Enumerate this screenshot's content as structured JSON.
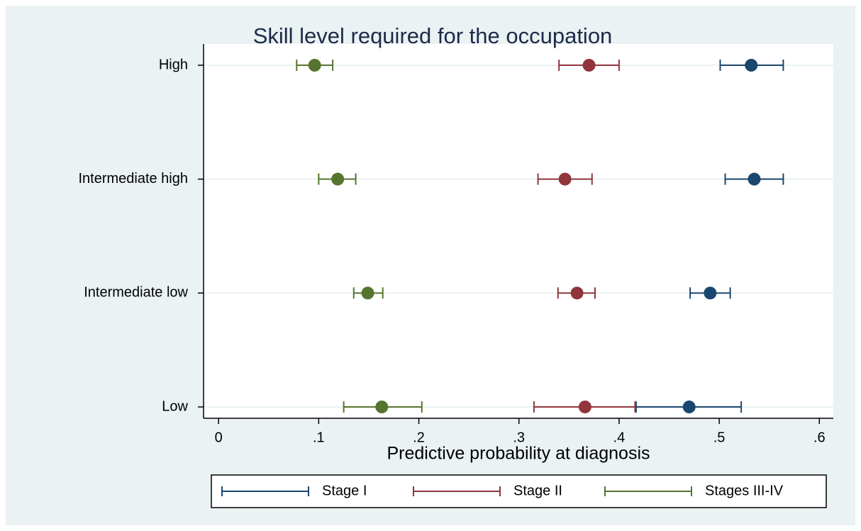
{
  "chart_data": {
    "type": "dot-errorbar",
    "title": "Skill level required for the occupation",
    "x_label": "Predictive probability at diagnosis",
    "categories": [
      "High",
      "Intermediate high",
      "Intermediate low",
      "Low"
    ],
    "series": [
      {
        "name": "Stage I",
        "color": "#1a476f",
        "values": [
          0.532,
          0.535,
          0.491,
          0.47
        ],
        "lower": [
          0.501,
          0.506,
          0.471,
          0.417
        ],
        "upper": [
          0.564,
          0.564,
          0.511,
          0.522
        ]
      },
      {
        "name": "Stage II",
        "color": "#90353b",
        "values": [
          0.37,
          0.346,
          0.358,
          0.366
        ],
        "lower": [
          0.34,
          0.319,
          0.339,
          0.315
        ],
        "upper": [
          0.4,
          0.373,
          0.376,
          0.416
        ]
      },
      {
        "name": "Stages III-IV",
        "color": "#55752f",
        "values": [
          0.096,
          0.119,
          0.149,
          0.163
        ],
        "lower": [
          0.078,
          0.1,
          0.135,
          0.125
        ],
        "upper": [
          0.114,
          0.137,
          0.164,
          0.203
        ]
      }
    ],
    "xlim": [
      -0.015,
      0.614
    ],
    "xticks": [
      0,
      {
        "value": 0.1,
        "label": ".1"
      },
      {
        "value": 0.2,
        "label": ".2"
      },
      {
        "value": 0.3,
        "label": ".3"
      },
      {
        "value": 0.4,
        "label": ".4"
      },
      {
        "value": 0.5,
        "label": ".5"
      },
      {
        "value": 0.6,
        "label": ".6"
      }
    ],
    "grid": true,
    "legend": "bottom"
  }
}
